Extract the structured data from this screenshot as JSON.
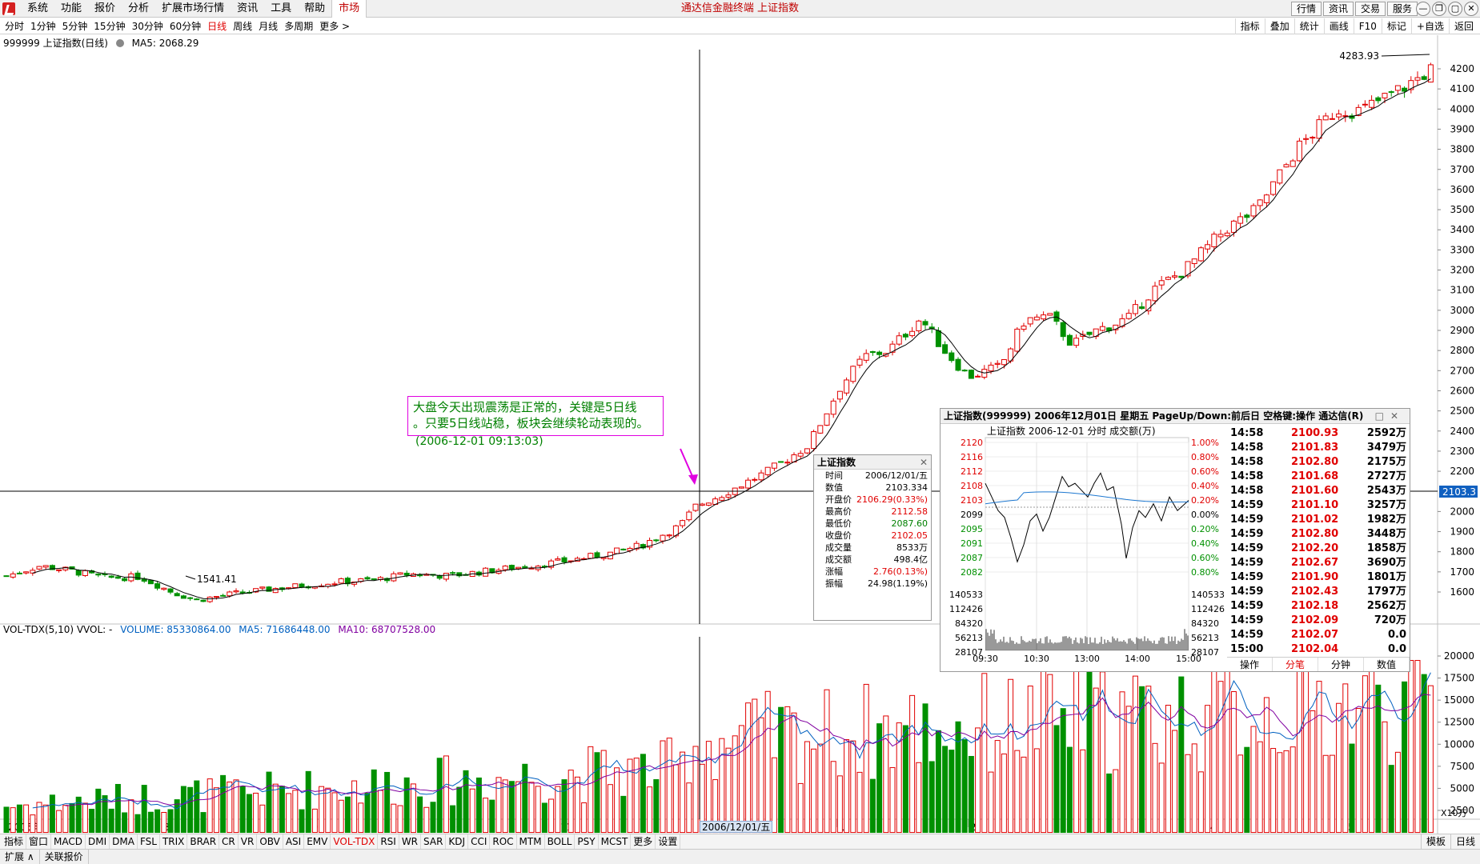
{
  "menu": {
    "items": [
      "系统",
      "功能",
      "报价",
      "分析",
      "扩展市场行情",
      "资讯",
      "工具",
      "帮助"
    ],
    "market": "市场",
    "title": "通达信金融终端 上证指数",
    "right_buttons": [
      "行情",
      "资讯",
      "交易",
      "服务"
    ],
    "window_controls": [
      "—",
      "❐",
      "▢",
      "✕"
    ]
  },
  "periods": {
    "items": [
      "分时",
      "1分钟",
      "5分钟",
      "15分钟",
      "30分钟",
      "60分钟",
      "日线",
      "周线",
      "月线",
      "多周期",
      "更多 >"
    ],
    "active_index": 6
  },
  "tools": [
    "指标",
    "叠加",
    "统计",
    "画线",
    "F10",
    "标记",
    "+自选",
    "返回"
  ],
  "main_chart": {
    "code_name": "999999 上证指数(日线)",
    "ma5_label": "MA5: 2068.29",
    "high_label": "4283.93",
    "low_label": "1541.41",
    "cursor_price": "2103.3",
    "price_ticks": [
      "4200",
      "4100",
      "4000",
      "3900",
      "3800",
      "3700",
      "3600",
      "3500",
      "3400",
      "3300",
      "3200",
      "3100",
      "3000",
      "2900",
      "2800",
      "2700",
      "2600",
      "2500",
      "2400",
      "2300",
      "2200",
      "2000",
      "1900",
      "1800",
      "1700",
      "1600"
    ],
    "up_color": "#e00000",
    "down_color": "#009000"
  },
  "volume_chart": {
    "label": "VOL-TDX(5,10) VVOL: -",
    "volume": "VOLUME: 85330864.00",
    "ma5": "MA5: 71686448.00",
    "ma10": "MA10: 68707528.00",
    "ticks": [
      "20000",
      "17500",
      "15000",
      "12500",
      "10000",
      "7500",
      "5000",
      "2500"
    ],
    "unit": "X10万"
  },
  "x_axis": {
    "labels": [
      "2006年",
      "8",
      "9",
      "10",
      "11",
      "1",
      "2",
      "3",
      "4",
      "5"
    ],
    "cursor_date": "2006/12/01/五"
  },
  "annotation": {
    "line1": "大盘今天出现震荡是正常的，关键是5日线",
    "line2": "。只要5日线站稳，板块会继续轮动表现的。",
    "time": "(2006-12-01 09:13:03)"
  },
  "info_window": {
    "title": "上证指数",
    "rows": [
      {
        "label": "时间",
        "value": "2006/12/01/五",
        "color": "black"
      },
      {
        "label": "数值",
        "value": "2103.334",
        "color": "black"
      },
      {
        "label": "开盘价",
        "value": "2106.29(0.33%)",
        "color": "red"
      },
      {
        "label": "最高价",
        "value": "2112.58",
        "color": "red"
      },
      {
        "label": "最低价",
        "value": "2087.60",
        "color": "green"
      },
      {
        "label": "收盘价",
        "value": "2102.05",
        "color": "red"
      },
      {
        "label": "成交量",
        "value": "8533万",
        "color": "black"
      },
      {
        "label": "成交额",
        "value": "498.4亿",
        "color": "black"
      },
      {
        "label": "涨幅",
        "value": "2.76(0.13%)",
        "color": "red"
      },
      {
        "label": "振幅",
        "value": "24.98(1.19%)",
        "color": "black"
      }
    ]
  },
  "intraday": {
    "title": "上证指数(999999) 2006年12月01日 星期五 PageUp/Down:前后日 空格键:操作 通达信(R)",
    "subtitle": "上证指数   2006-12-01 分时 成交额(万)",
    "price_ticks": [
      "2120",
      "2116",
      "2112",
      "2108",
      "2103",
      "2099",
      "2095",
      "2091",
      "2087",
      "2082"
    ],
    "pct_ticks": [
      "1.00%",
      "0.80%",
      "0.60%",
      "0.40%",
      "0.20%",
      "0.00%",
      "0.20%",
      "0.40%",
      "0.60%",
      "0.80%"
    ],
    "vol_ticks": [
      "140533",
      "112426",
      "84320",
      "56213",
      "28107"
    ],
    "time_labels": [
      "09:30",
      "10:30",
      "13:00",
      "14:00",
      "15:00"
    ],
    "ticks": [
      {
        "time": "14:58",
        "price": "2100.93",
        "vol": "2592万"
      },
      {
        "time": "14:58",
        "price": "2101.83",
        "vol": "3479万"
      },
      {
        "time": "14:58",
        "price": "2102.80",
        "vol": "2175万"
      },
      {
        "time": "14:58",
        "price": "2101.68",
        "vol": "2727万"
      },
      {
        "time": "14:58",
        "price": "2101.60",
        "vol": "2543万"
      },
      {
        "time": "14:59",
        "price": "2101.10",
        "vol": "3257万"
      },
      {
        "time": "14:59",
        "price": "2101.02",
        "vol": "1982万"
      },
      {
        "time": "14:59",
        "price": "2102.80",
        "vol": "3448万"
      },
      {
        "time": "14:59",
        "price": "2102.20",
        "vol": "1858万"
      },
      {
        "time": "14:59",
        "price": "2102.67",
        "vol": "3690万"
      },
      {
        "time": "14:59",
        "price": "2101.90",
        "vol": "1801万"
      },
      {
        "time": "14:59",
        "price": "2102.43",
        "vol": "1797万"
      },
      {
        "time": "14:59",
        "price": "2102.18",
        "vol": "2562万"
      },
      {
        "time": "14:59",
        "price": "2102.09",
        "vol": "720万"
      },
      {
        "time": "14:59",
        "price": "2102.07",
        "vol": "0.0"
      },
      {
        "time": "15:00",
        "price": "2102.04",
        "vol": "0.0"
      }
    ],
    "tabs": [
      "操作",
      "分笔",
      "分钟",
      "数值"
    ],
    "active_tab": 1
  },
  "indicators": {
    "tabs": [
      "指标",
      "窗口",
      "MACD",
      "DMI",
      "DMA",
      "FSL",
      "TRIX",
      "BRAR",
      "CR",
      "VR",
      "OBV",
      "ASI",
      "EMV",
      "VOL-TDX",
      "RSI",
      "WR",
      "SAR",
      "KDJ",
      "CCI",
      "ROC",
      "MTM",
      "BOLL",
      "PSY",
      "MCST",
      "更多",
      "设置"
    ],
    "active": "VOL-TDX",
    "right": [
      "模板",
      "日线"
    ]
  },
  "status": [
    "扩展 ∧",
    "关联报价"
  ]
}
